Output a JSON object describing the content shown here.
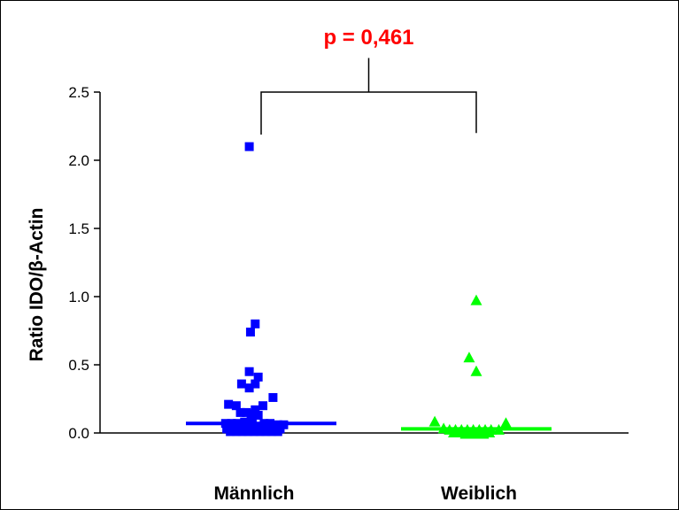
{
  "chart_data": {
    "type": "scatter",
    "ylabel": "Ratio IDO/β-Actin",
    "ylim": [
      0,
      2.5
    ],
    "yticks": [
      "0.0",
      "0.5",
      "1.0",
      "1.5",
      "2.0",
      "2.5"
    ],
    "categories": [
      "Männlich",
      "Weiblich"
    ],
    "annotation": "p = 0,461",
    "annotation_color": "#ff0000",
    "bracket_y": 2.2,
    "bracket_top_y": 2.75,
    "series": [
      {
        "name": "Männlich",
        "color": "#0000ff",
        "marker": "square",
        "median": 0.07,
        "points": [
          {
            "dx": -0.2,
            "y": 2.1
          },
          {
            "dx": -0.1,
            "y": 0.8
          },
          {
            "dx": -0.18,
            "y": 0.74
          },
          {
            "dx": -0.2,
            "y": 0.45
          },
          {
            "dx": -0.05,
            "y": 0.41
          },
          {
            "dx": -0.33,
            "y": 0.36
          },
          {
            "dx": -0.1,
            "y": 0.36
          },
          {
            "dx": -0.2,
            "y": 0.33
          },
          {
            "dx": 0.2,
            "y": 0.26
          },
          {
            "dx": -0.55,
            "y": 0.21
          },
          {
            "dx": -0.42,
            "y": 0.2
          },
          {
            "dx": 0.03,
            "y": 0.2
          },
          {
            "dx": -0.1,
            "y": 0.17
          },
          {
            "dx": -0.35,
            "y": 0.15
          },
          {
            "dx": -0.25,
            "y": 0.15
          },
          {
            "dx": -0.17,
            "y": 0.14
          },
          {
            "dx": -0.05,
            "y": 0.13
          },
          {
            "dx": -0.6,
            "y": 0.07
          },
          {
            "dx": -0.5,
            "y": 0.07
          },
          {
            "dx": -0.4,
            "y": 0.07
          },
          {
            "dx": -0.28,
            "y": 0.08
          },
          {
            "dx": -0.15,
            "y": 0.08
          },
          {
            "dx": 0.05,
            "y": 0.07
          },
          {
            "dx": 0.15,
            "y": 0.07
          },
          {
            "dx": 0.28,
            "y": 0.06
          },
          {
            "dx": 0.38,
            "y": 0.06
          },
          {
            "dx": -0.58,
            "y": 0.03
          },
          {
            "dx": -0.48,
            "y": 0.03
          },
          {
            "dx": -0.38,
            "y": 0.04
          },
          {
            "dx": -0.3,
            "y": 0.03
          },
          {
            "dx": -0.22,
            "y": 0.04
          },
          {
            "dx": -0.12,
            "y": 0.03
          },
          {
            "dx": -0.02,
            "y": 0.04
          },
          {
            "dx": 0.08,
            "y": 0.03
          },
          {
            "dx": 0.18,
            "y": 0.04
          },
          {
            "dx": 0.32,
            "y": 0.03
          },
          {
            "dx": -0.52,
            "y": 0.01
          },
          {
            "dx": -0.42,
            "y": 0.01
          },
          {
            "dx": -0.32,
            "y": 0.01
          },
          {
            "dx": -0.22,
            "y": 0.01
          },
          {
            "dx": -0.12,
            "y": 0.01
          },
          {
            "dx": -0.02,
            "y": 0.01
          },
          {
            "dx": 0.08,
            "y": 0.01
          },
          {
            "dx": 0.18,
            "y": 0.01
          },
          {
            "dx": 0.28,
            "y": 0.01
          }
        ]
      },
      {
        "name": "Weiblich",
        "color": "#00ff00",
        "marker": "triangle",
        "median": 0.03,
        "points": [
          {
            "dx": 0.0,
            "y": 0.97
          },
          {
            "dx": -0.12,
            "y": 0.55
          },
          {
            "dx": 0.0,
            "y": 0.45
          },
          {
            "dx": -0.7,
            "y": 0.08
          },
          {
            "dx": 0.5,
            "y": 0.07
          },
          {
            "dx": -0.55,
            "y": 0.03
          },
          {
            "dx": -0.45,
            "y": 0.02
          },
          {
            "dx": -0.35,
            "y": 0.02
          },
          {
            "dx": -0.25,
            "y": 0.02
          },
          {
            "dx": -0.15,
            "y": 0.02
          },
          {
            "dx": -0.05,
            "y": 0.02
          },
          {
            "dx": 0.05,
            "y": 0.02
          },
          {
            "dx": 0.15,
            "y": 0.02
          },
          {
            "dx": 0.25,
            "y": 0.02
          },
          {
            "dx": 0.38,
            "y": 0.02
          },
          {
            "dx": -0.38,
            "y": 0.0
          },
          {
            "dx": -0.28,
            "y": 0.0
          },
          {
            "dx": -0.18,
            "y": -0.01
          },
          {
            "dx": -0.08,
            "y": -0.01
          },
          {
            "dx": 0.02,
            "y": -0.01
          },
          {
            "dx": 0.12,
            "y": -0.01
          },
          {
            "dx": 0.22,
            "y": 0.0
          }
        ]
      }
    ]
  }
}
